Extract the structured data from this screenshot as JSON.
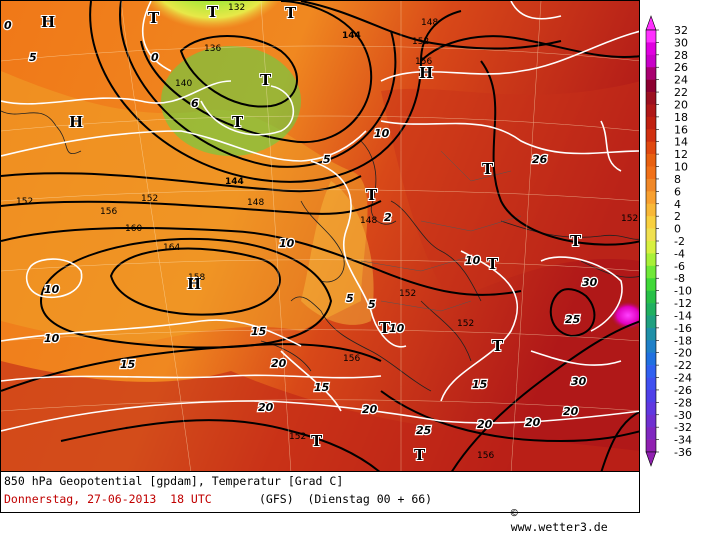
{
  "map": {
    "title_line": "850 hPa Geopotential [gpdam], Temperatur [Grad C]",
    "date_line": "Donnerstag, 27-06-2013  18 UTC",
    "model_line": "(GFS)  (Dienstag 00 + 66)",
    "credit": "www.wetter3.de",
    "pressure_systems": [
      {
        "type": "H"
      },
      {
        "type": "H"
      },
      {
        "type": "H"
      },
      {
        "type": "H"
      },
      {
        "type": "T"
      },
      {
        "type": "T"
      },
      {
        "type": "T"
      },
      {
        "type": "T"
      },
      {
        "type": "T"
      },
      {
        "type": "T"
      },
      {
        "type": "T"
      },
      {
        "type": "T"
      },
      {
        "type": "T"
      },
      {
        "type": "T"
      },
      {
        "type": "T"
      },
      {
        "type": "T"
      },
      {
        "type": "T"
      }
    ],
    "geopotential_labels": [
      "132",
      "136",
      "140",
      "144",
      "148",
      "152",
      "156",
      "160",
      "164",
      "158",
      "144",
      "148",
      "152",
      "156",
      "152",
      "152",
      "152",
      "156",
      "148",
      "152",
      "156",
      "152"
    ],
    "temperature_labels": [
      "0",
      "0",
      "5",
      "5",
      "5",
      "10",
      "10",
      "10",
      "10",
      "15",
      "15",
      "15",
      "15",
      "20",
      "20",
      "20",
      "20",
      "20",
      "25",
      "25",
      "30",
      "30",
      "20",
      "26",
      "10",
      "10",
      "5",
      "6",
      "2"
    ]
  },
  "legend": {
    "ticks": [
      "32",
      "30",
      "28",
      "26",
      "24",
      "22",
      "20",
      "18",
      "16",
      "14",
      "12",
      "10",
      "8",
      "6",
      "4",
      "2",
      "0",
      "-2",
      "-4",
      "-6",
      "-8",
      "-10",
      "-12",
      "-14",
      "-16",
      "-18",
      "-20",
      "-22",
      "-24",
      "-26",
      "-28",
      "-30",
      "-32",
      "-34",
      "-36"
    ],
    "colors": [
      "#ff30ff",
      "#e000e0",
      "#c800c8",
      "#a80070",
      "#8c0030",
      "#9c1020",
      "#b01818",
      "#c02010",
      "#d03010",
      "#e04810",
      "#e86010",
      "#f07018",
      "#f08828",
      "#f8a030",
      "#f8b838",
      "#f8d040",
      "#f0e050",
      "#d8f040",
      "#a8f038",
      "#70e838",
      "#40d838",
      "#28c048",
      "#20b060",
      "#20a080",
      "#2090a8",
      "#2080c8",
      "#2070e0",
      "#3060f0",
      "#4050f0",
      "#5040e8",
      "#6038e0",
      "#7030d0",
      "#8028c0",
      "#9020b0"
    ]
  }
}
